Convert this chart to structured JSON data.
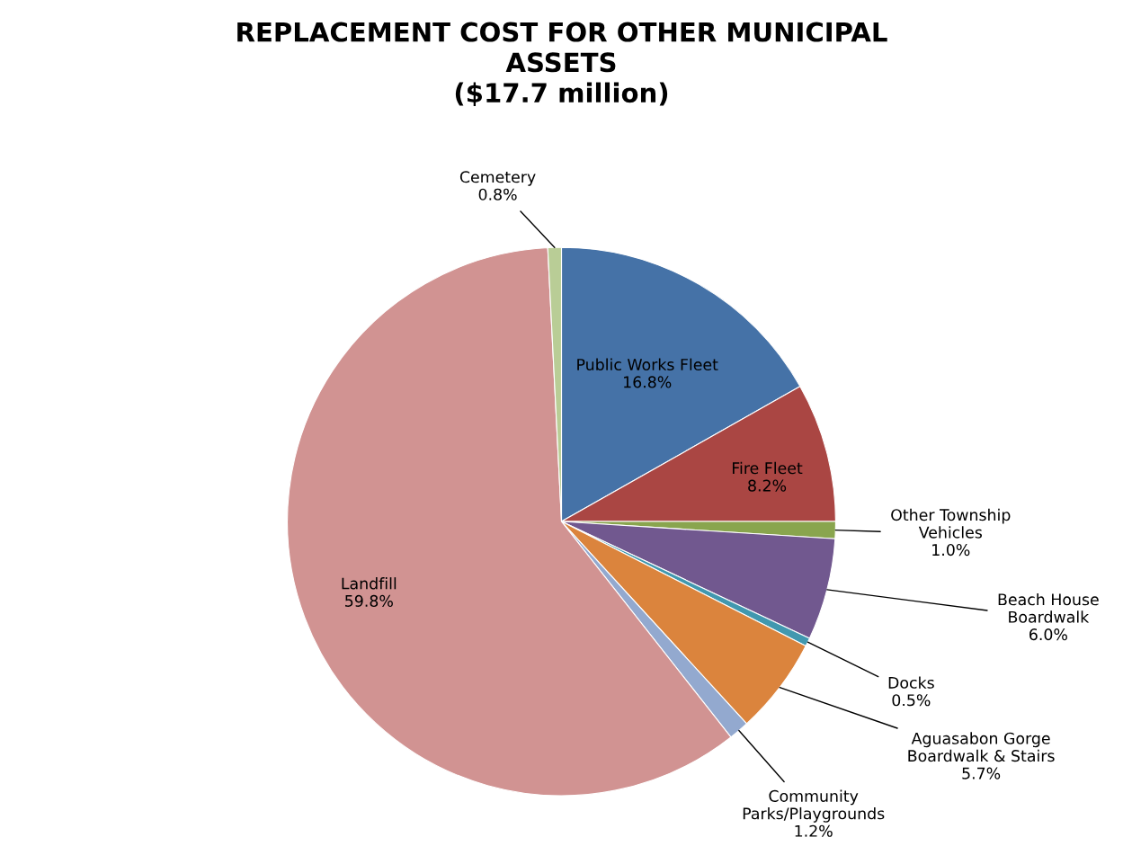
{
  "chart_data": {
    "type": "pie",
    "title": "REPLACEMENT COST FOR OTHER MUNICIPAL\nASSETS\n($17.7 million)",
    "categories": [
      "Public Works Fleet",
      "Fire Fleet",
      "Other Township\nVehicles",
      "Beach House\nBoardwalk",
      "Docks",
      "Aguasabon Gorge\nBoardwalk & Stairs",
      "Community\nParks/Playgrounds",
      "Landfill",
      "Cemetery"
    ],
    "values": [
      16.8,
      8.2,
      1.0,
      6.0,
      0.5,
      5.7,
      1.2,
      59.8,
      0.8
    ],
    "colors": [
      "#4572a7",
      "#aa4643",
      "#89a54e",
      "#71588f",
      "#4198af",
      "#db843d",
      "#93a9cf",
      "#d19392",
      "#b9cd96"
    ],
    "value_labels": [
      "16.8%",
      "8.2%",
      "1.0%",
      "6.0%",
      "0.5%",
      "5.7%",
      "1.2%",
      "59.8%",
      "0.8%"
    ],
    "legend": false
  }
}
